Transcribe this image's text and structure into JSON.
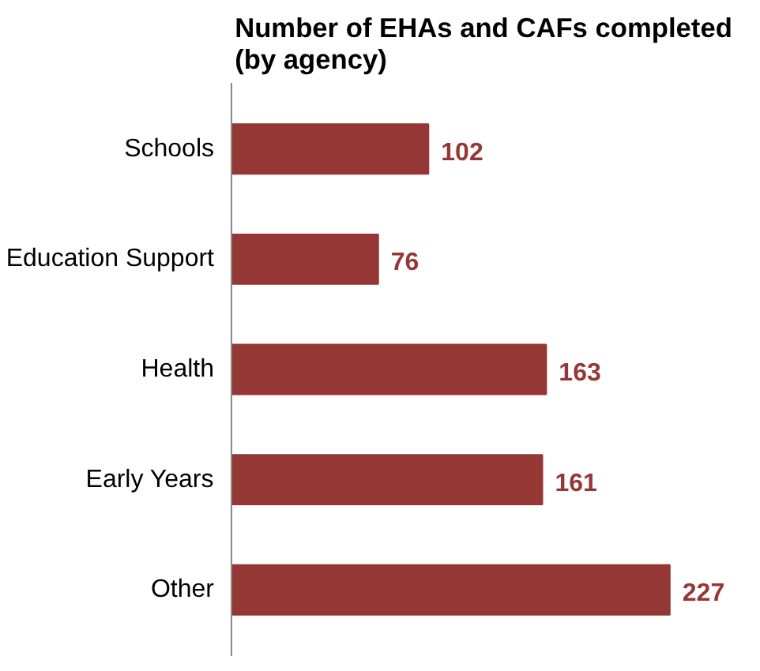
{
  "chart_data": {
    "type": "bar",
    "orientation": "horizontal",
    "title": "Number of EHAs and CAFs completed\n(by agency)",
    "categories": [
      "Schools",
      "Education Support",
      "Health",
      "Early Years",
      "Other"
    ],
    "values": [
      102,
      76,
      163,
      161,
      227
    ],
    "color": "#953735",
    "data_labels": true,
    "grid": false
  }
}
